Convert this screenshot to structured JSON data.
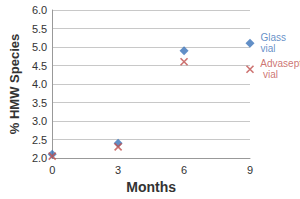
{
  "chart_data": {
    "type": "scatter",
    "x_label": "Months",
    "y_label": "% HMW Species",
    "xlim": [
      0,
      9
    ],
    "xticks": [
      0,
      3,
      6,
      9
    ],
    "ylim": [
      2,
      6
    ],
    "yticks": [
      {
        "value": 2,
        "label": "2.0"
      },
      2.5,
      {
        "value": 3,
        "label": "3.0"
      },
      3.5,
      {
        "value": 4,
        "label": "4.0"
      },
      4.5,
      {
        "value": 5,
        "label": "5.0"
      },
      5.5,
      {
        "value": 6,
        "label": "6.0"
      }
    ],
    "grid": true,
    "series": [
      {
        "name": "Glass vial",
        "color": "#3b73b9",
        "marker": "diamond",
        "x": [
          0,
          3,
          6,
          9
        ],
        "values": [
          2.1,
          2.4,
          4.9,
          5.1
        ]
      },
      {
        "name": "Advasept vial",
        "color": "#c0504d",
        "marker": "x",
        "x": [
          0,
          3,
          6,
          9
        ],
        "values": [
          2.05,
          2.3,
          4.6,
          4.4
        ]
      }
    ]
  }
}
